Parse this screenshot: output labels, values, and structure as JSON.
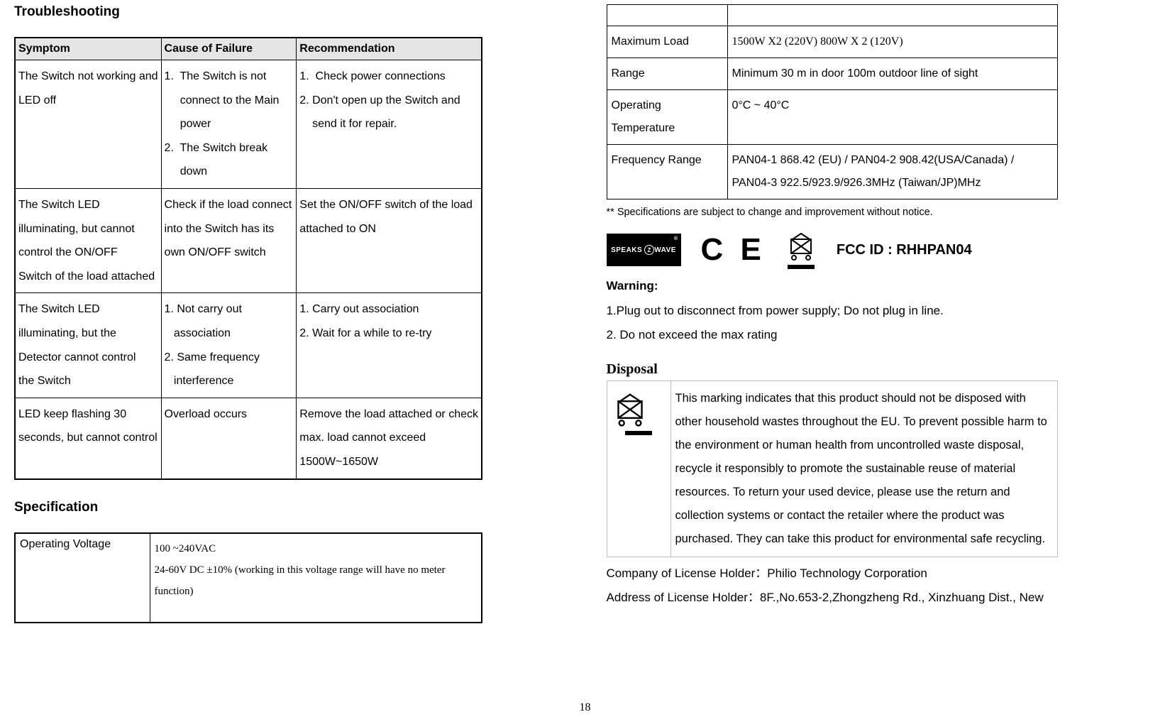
{
  "left": {
    "troubleshooting_heading": "Troubleshooting",
    "troubleshoot_table": {
      "headers": [
        "Symptom",
        "Cause of Failure",
        "Recommendation"
      ],
      "rows": [
        {
          "symptom": [
            "The Switch not working and",
            "LED off"
          ],
          "cause": [
            "1.  The Switch is not",
            "     connect to the Main",
            "     power",
            "2.  The Switch break",
            "     down"
          ],
          "rec": [
            "1.  Check power connections",
            "2. Don't open up the Switch and",
            "    send it for repair."
          ]
        },
        {
          "symptom": [
            "The Switch LED",
            "illuminating, but cannot",
            "control the ON/OFF",
            "Switch of the load attached"
          ],
          "cause": [
            "Check if the load connect",
            "into the Switch has its",
            "own ON/OFF switch"
          ],
          "rec": [
            "Set the ON/OFF switch of the load",
            "attached to ON"
          ]
        },
        {
          "symptom": [
            "The Switch LED",
            "illuminating, but the",
            "Detector cannot control",
            "the Switch"
          ],
          "cause": [
            "1. Not carry out",
            "   association",
            "2. Same frequency",
            "   interference"
          ],
          "rec": [
            "1. Carry out association",
            "2. Wait for a while to re-try"
          ]
        },
        {
          "symptom": [
            "LED keep flashing 30",
            "seconds, but cannot control"
          ],
          "cause": [
            "Overload occurs"
          ],
          "rec": [
            "Remove the load attached or check",
            "max. load cannot exceed",
            "1500W~1650W"
          ]
        }
      ]
    },
    "specification_heading": "Specification",
    "spec_left_table": {
      "row": {
        "label": "Operating Voltage",
        "value_line1": "100 ~240VAC",
        "value_line2": "24-60V DC ±10% (working in this voltage range will have no meter function)"
      }
    }
  },
  "right": {
    "spec_right_table": {
      "rows": [
        {
          "label": "Maximum Load",
          "value": "1500W X2  (220V)  800W X 2 (120V)",
          "value_serif": true
        },
        {
          "label": "Range",
          "value": "Minimum 30 m in door 100m outdoor  line of sight"
        },
        {
          "label": "Operating Temperature",
          "value": "0°C ~ 40°C"
        },
        {
          "label": "Frequency Range",
          "value": "PAN04-1 868.42 (EU) / PAN04-2 908.42(USA/Canada) / PAN04-3 922.5/923.9/926.3MHz (Taiwan/JP)MHz"
        }
      ]
    },
    "footnote": "** Specifications are subject to change and improvement without notice.",
    "cert": {
      "zwave_text": "SPEAKS",
      "zwave_inner": "Z",
      "zwave_suffix": "WAVE",
      "ce": "C E",
      "fcc_id": "FCC ID : RHHPAN04"
    },
    "warning_heading": "Warning:",
    "warning_lines": [
      "1.Plug out to disconnect from power supply; Do not plug in line.",
      "2. Do not exceed the max rating"
    ],
    "disposal_heading": "Disposal",
    "disposal_text": "This marking indicates that this product should not be disposed with other household wastes throughout the EU. To prevent possible harm to the environment or human health from uncontrolled waste disposal, recycle it responsibly to promote the sustainable reuse of material resources. To return your used device, please use the return and collection systems or contact the retailer where the product was purchased. They can take this product for environmental safe recycling.",
    "license_company": "Company of License Holder：Philio Technology Corporation",
    "license_address": "Address of License Holder：8F.,No.653-2,Zhongzheng Rd., Xinzhuang Dist., New"
  },
  "page_number": "18",
  "colors": {
    "background": "#ffffff",
    "text": "#000000",
    "table_header_bg": "#e5e5e5",
    "table_border": "#000000",
    "disposal_border": "#bbbbbb"
  },
  "fonts": {
    "body": "Arial",
    "serif": "Times New Roman"
  }
}
